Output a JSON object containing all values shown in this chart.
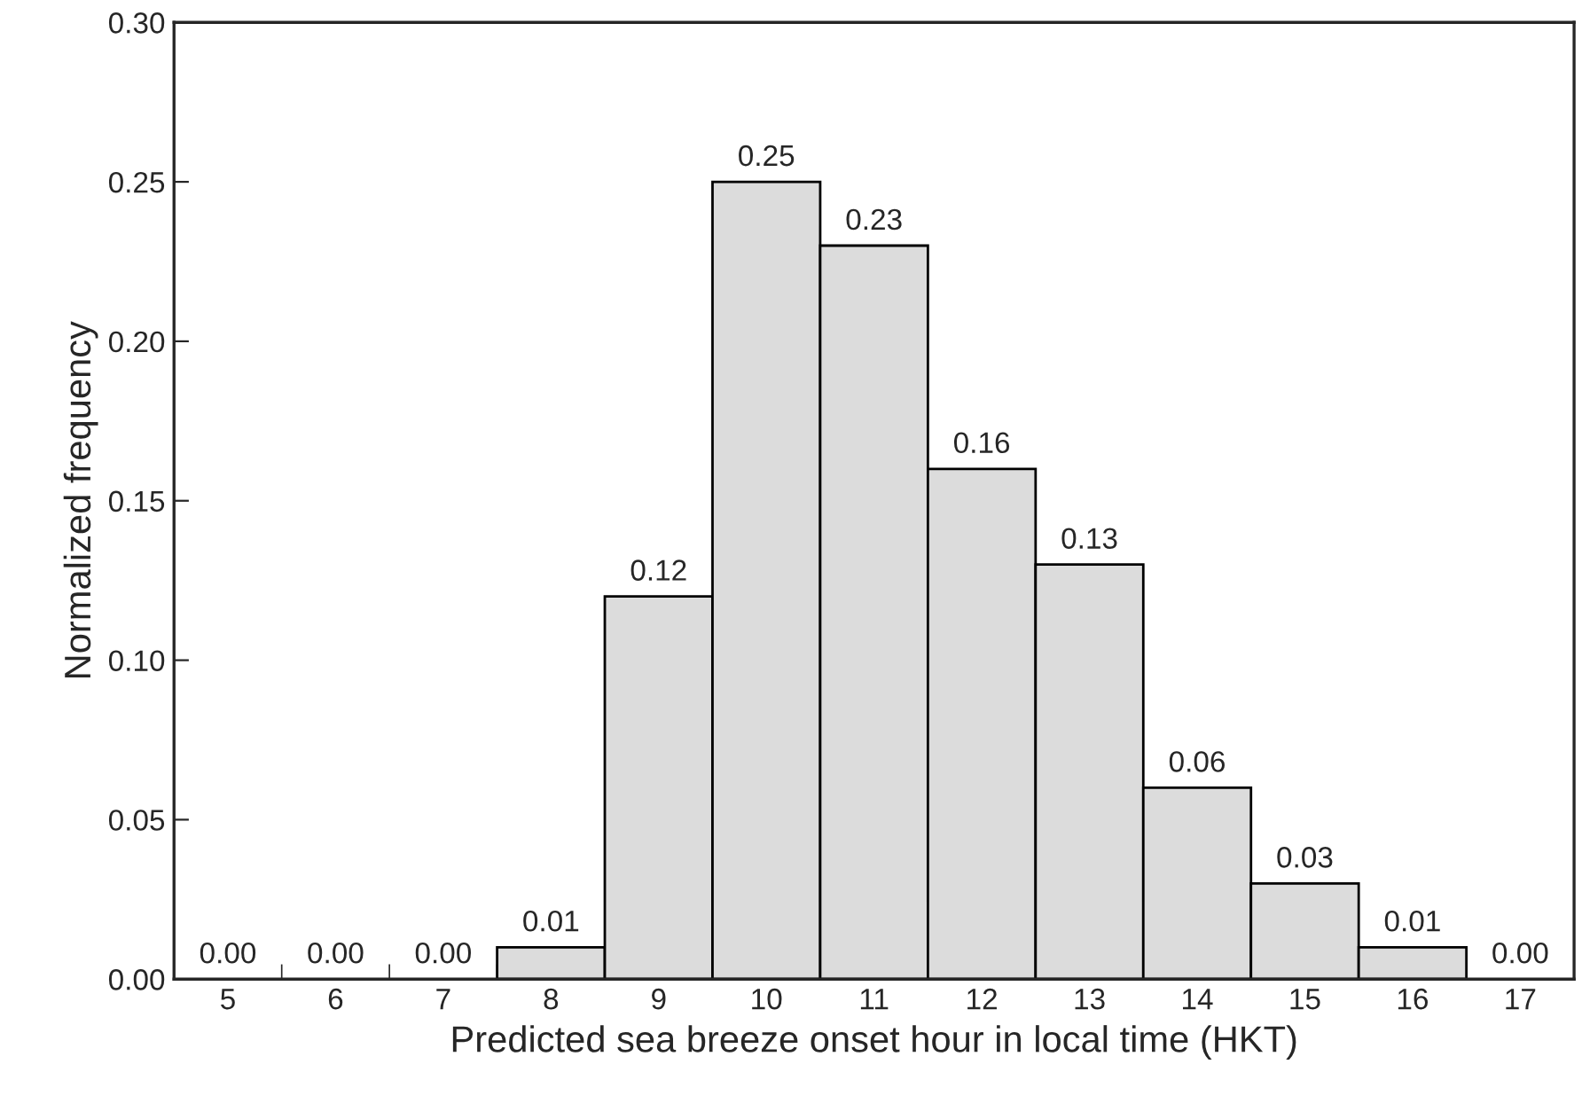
{
  "chart_data": {
    "type": "bar",
    "categories": [
      "5",
      "6",
      "7",
      "8",
      "9",
      "10",
      "11",
      "12",
      "13",
      "14",
      "15",
      "16",
      "17"
    ],
    "values": [
      0.0,
      0.0,
      0.0,
      0.01,
      0.12,
      0.25,
      0.23,
      0.16,
      0.13,
      0.06,
      0.03,
      0.01,
      0.0
    ],
    "value_labels": [
      "0.00",
      "0.00",
      "0.00",
      "0.01",
      "0.12",
      "0.25",
      "0.23",
      "0.16",
      "0.13",
      "0.06",
      "0.03",
      "0.01",
      "0.00"
    ],
    "color": "#dcdcdc",
    "ylim": [
      0,
      0.3
    ],
    "yticks": [
      {
        "value": 0,
        "label": "0.00"
      },
      {
        "value": 0.05,
        "label": "0.05"
      },
      {
        "value": 0.1,
        "label": "0.10"
      },
      {
        "value": 0.15,
        "label": "0.15"
      },
      {
        "value": 0.2,
        "label": "0.20"
      },
      {
        "value": 0.25,
        "label": "0.25"
      },
      {
        "value": 0.3,
        "label": "0.30"
      }
    ],
    "xlabel": "Predicted sea breeze onset hour in local time (HKT)",
    "ylabel": "Normalized frequency",
    "grid": false,
    "legend": false
  }
}
